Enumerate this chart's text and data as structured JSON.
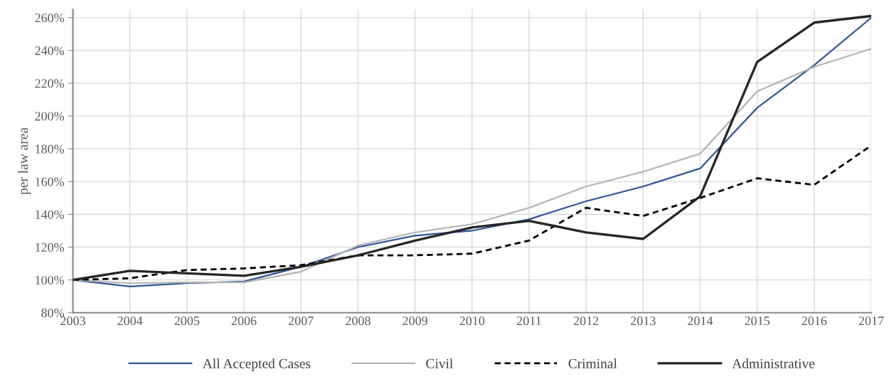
{
  "chart_data": {
    "type": "line",
    "ylabel": "per law area",
    "x": [
      2003,
      2004,
      2005,
      2006,
      2007,
      2008,
      2009,
      2010,
      2011,
      2012,
      2013,
      2014,
      2015,
      2016,
      2017
    ],
    "xlim": [
      2003,
      2017
    ],
    "xticks": [
      2003,
      2004,
      2005,
      2006,
      2007,
      2008,
      2009,
      2010,
      2011,
      2012,
      2013,
      2014,
      2015,
      2016,
      2017
    ],
    "ylim": [
      80,
      265
    ],
    "yticks": [
      {
        "value": 80,
        "label": "80%"
      },
      {
        "value": 100,
        "label": "100%"
      },
      {
        "value": 120,
        "label": "120%"
      },
      {
        "value": 140,
        "label": "140%"
      },
      {
        "value": 160,
        "label": "160%"
      },
      {
        "value": 180,
        "label": "180%"
      },
      {
        "value": 200,
        "label": "200%"
      },
      {
        "value": 220,
        "label": "220%"
      },
      {
        "value": 240,
        "label": "240%"
      },
      {
        "value": 260,
        "label": "260%"
      }
    ],
    "grid": true,
    "legend": "bottom",
    "marker": "none",
    "series": [
      {
        "name": "All Accepted Cases",
        "color": "#2f5597",
        "line_style": "solid",
        "values": [
          100,
          96,
          98,
          99,
          108,
          120,
          127,
          130,
          137,
          148,
          157,
          168,
          205,
          231,
          260
        ]
      },
      {
        "name": "Civil",
        "color": "#b4b4b4",
        "line_style": "solid",
        "values": [
          100,
          98,
          98.5,
          98.5,
          105,
          121,
          129,
          134,
          144,
          157,
          166,
          177,
          215,
          230,
          241
        ]
      },
      {
        "name": "Criminal",
        "color": "#000000",
        "line_style": "dashed",
        "values": [
          100,
          101,
          106,
          107,
          109,
          115,
          115,
          116,
          124,
          144,
          139,
          150,
          162,
          158,
          182
        ]
      },
      {
        "name": "Administrative",
        "color": "#262626",
        "line_style": "solid",
        "values": [
          100,
          105.5,
          104,
          102.5,
          108,
          115,
          124,
          132,
          136,
          129,
          125,
          151,
          233,
          257,
          261
        ]
      }
    ]
  }
}
